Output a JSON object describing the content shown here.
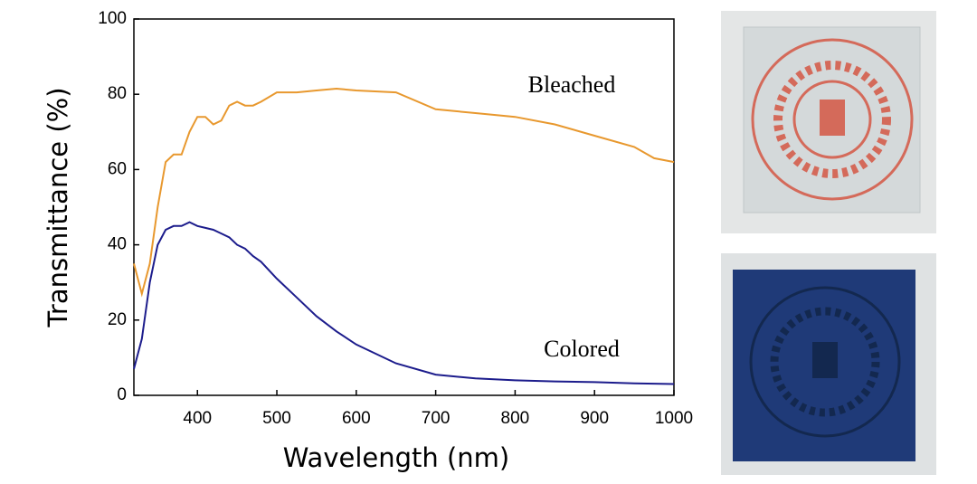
{
  "chart_data": {
    "type": "line",
    "x_label": "Wavelength (nm)",
    "y_label": "Transmittance (%)",
    "x": [
      320,
      330,
      340,
      350,
      360,
      370,
      380,
      390,
      400,
      410,
      420,
      430,
      440,
      450,
      460,
      470,
      480,
      500,
      525,
      550,
      575,
      600,
      650,
      700,
      750,
      800,
      850,
      900,
      950,
      975,
      1000
    ],
    "series": [
      {
        "name": "Bleached",
        "color": "#e8982e",
        "values": [
          35,
          27,
          35,
          50,
          62,
          64,
          64,
          70,
          74,
          74,
          72,
          73,
          77,
          78,
          77,
          77,
          78,
          80.5,
          80.5,
          81,
          81.5,
          81,
          80.5,
          76,
          75,
          74,
          72,
          69,
          66,
          63,
          62
        ]
      },
      {
        "name": "Colored",
        "color": "#1c1c8c",
        "values": [
          7,
          15,
          30,
          40,
          44,
          45,
          45,
          46,
          45,
          44.5,
          44,
          43,
          42,
          40,
          39,
          37,
          35.5,
          31,
          26,
          21,
          17,
          13.5,
          8.5,
          5.5,
          4.5,
          4,
          3.7,
          3.5,
          3.2,
          3.1,
          3
        ]
      }
    ],
    "xlim": [
      320,
      1000
    ],
    "xticks": [
      400,
      500,
      600,
      700,
      800,
      900,
      1000
    ],
    "ylim": [
      0,
      100
    ],
    "yticks": [
      0,
      20,
      40,
      60,
      80,
      100
    ],
    "grid": false
  }
}
